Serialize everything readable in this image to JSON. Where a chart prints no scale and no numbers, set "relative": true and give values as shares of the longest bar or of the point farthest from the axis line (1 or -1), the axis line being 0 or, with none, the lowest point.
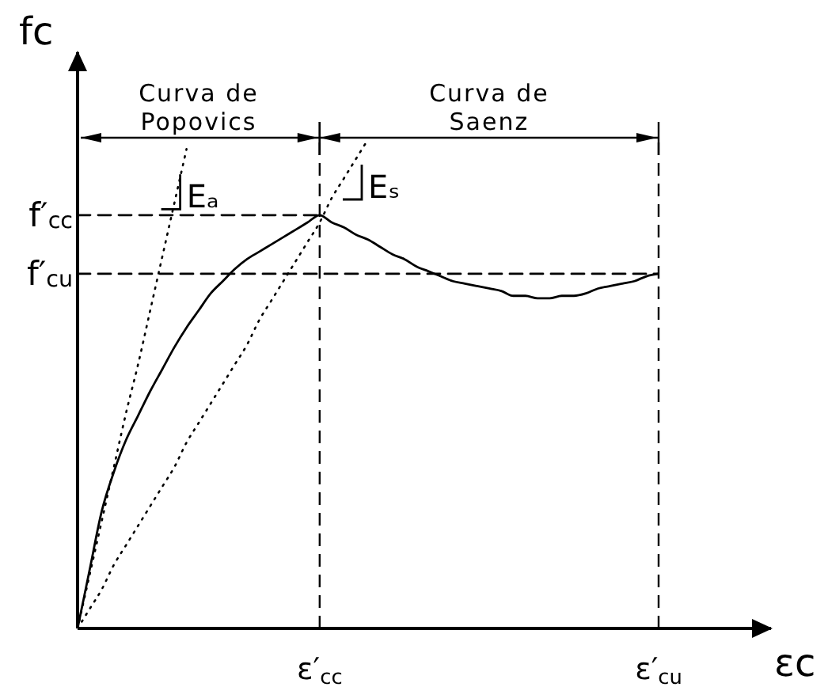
{
  "chart_data": {
    "type": "line",
    "xlabel": "εc",
    "ylabel": "fc",
    "relative": true,
    "marker": "none",
    "categories": [
      null,
      null,
      null,
      null,
      null,
      null,
      null,
      null,
      null,
      null,
      null,
      null,
      null,
      null,
      null,
      null,
      null,
      null,
      null,
      null,
      "ε′$_{cc}$",
      null,
      null,
      null,
      null,
      null,
      null,
      null,
      null,
      null,
      null,
      null,
      null,
      null,
      null,
      null,
      null,
      null,
      null,
      null,
      null,
      null,
      null,
      null,
      null,
      null,
      null,
      null,
      "ε′$_{cu}$"
    ],
    "series": [
      {
        "color": "#000000",
        "values": [
          0,
          0.12,
          0.24,
          0.32,
          0.385,
          0.435,
          0.485,
          0.53,
          0.575,
          0.615,
          0.65,
          0.685,
          0.71,
          0.735,
          0.755,
          0.77,
          0.785,
          0.8,
          0.815,
          0.83,
          0.845,
          0.83,
          0.82,
          0.805,
          0.795,
          0.78,
          0.765,
          0.755,
          0.74,
          0.73,
          0.72,
          0.71,
          0.705,
          0.7,
          0.695,
          0.69,
          0.68,
          0.68,
          0.675,
          0.675,
          0.68,
          0.68,
          0.685,
          0.695,
          0.7,
          0.705,
          0.71,
          0.72,
          0.725
        ]
      },
      {
        "name": "f′$_{cc}$",
        "type": "line",
        "color": "#000000",
        "line_style": "dashed",
        "values": [
          0.845,
          0.845,
          0.845,
          0.845,
          0.845,
          0.845,
          0.845,
          0.845,
          0.845,
          0.845,
          0.845,
          0.845,
          0.845,
          0.845,
          0.845,
          0.845,
          0.845,
          0.845,
          0.845,
          0.845,
          0.845,
          null,
          null,
          null,
          null,
          null,
          null,
          null,
          null,
          null,
          null,
          null,
          null,
          null,
          null,
          null,
          null,
          null,
          null,
          null,
          null,
          null,
          null,
          null,
          null,
          null,
          null,
          null,
          null
        ]
      },
      {
        "name": "f′$_{cu}$",
        "type": "line",
        "color": "#000000",
        "line_style": "dashed",
        "values": [
          0.725,
          0.725,
          0.725,
          0.725,
          0.725,
          0.725,
          0.725,
          0.725,
          0.725,
          0.725,
          0.725,
          0.725,
          0.725,
          0.725,
          0.725,
          0.725,
          0.725,
          0.725,
          0.725,
          0.725,
          0.725,
          0.725,
          0.725,
          0.725,
          0.725,
          0.725,
          0.725,
          0.725,
          0.725,
          0.725,
          0.725,
          0.725,
          0.725,
          0.725,
          0.725,
          0.725,
          0.725,
          0.725,
          0.725,
          0.725,
          0.725,
          0.725,
          0.725,
          0.725,
          0.725,
          0.725,
          0.725,
          0.725,
          0.725
        ]
      },
      {
        "type": "line",
        "color": "#000000",
        "line_style": "dotted",
        "values": [
          0,
          0.11,
          0.22,
          0.33,
          0.44,
          0.54,
          0.65,
          0.76,
          0.87,
          0.98,
          null,
          null,
          null,
          null,
          null,
          null,
          null,
          null,
          null,
          null,
          null,
          null,
          null,
          null,
          null,
          null,
          null,
          null,
          null,
          null,
          null,
          null,
          null,
          null,
          null,
          null,
          null,
          null,
          null,
          null,
          null,
          null,
          null,
          null,
          null,
          null,
          null,
          null,
          null
        ]
      },
      {
        "type": "line",
        "color": "#000000",
        "line_style": "dotted",
        "values": [
          0,
          0.04,
          0.08,
          0.13,
          0.17,
          0.21,
          0.25,
          0.29,
          0.33,
          0.38,
          0.42,
          0.46,
          0.5,
          0.54,
          0.58,
          0.63,
          0.67,
          0.71,
          0.75,
          0.79,
          0.83,
          0.88,
          0.92,
          0.96,
          1,
          null,
          null,
          null,
          null,
          null,
          null,
          null,
          null,
          null,
          null,
          null,
          null,
          null,
          null,
          null,
          null,
          null,
          null,
          null,
          null,
          null,
          null,
          null,
          null
        ]
      }
    ],
    "ref_lines": [
      {
        "axis": "x",
        "value": "ε′$_{cc}$",
        "color": "#000000",
        "line_style": "dashed"
      },
      {
        "axis": "x",
        "value": "ε′$_{cu}$",
        "color": "#000000",
        "line_style": "dashed"
      }
    ],
    "annotations": [
      "Curva de Popovics",
      "Curva de Saenz",
      "Eₐ",
      "Eₛ"
    ]
  }
}
